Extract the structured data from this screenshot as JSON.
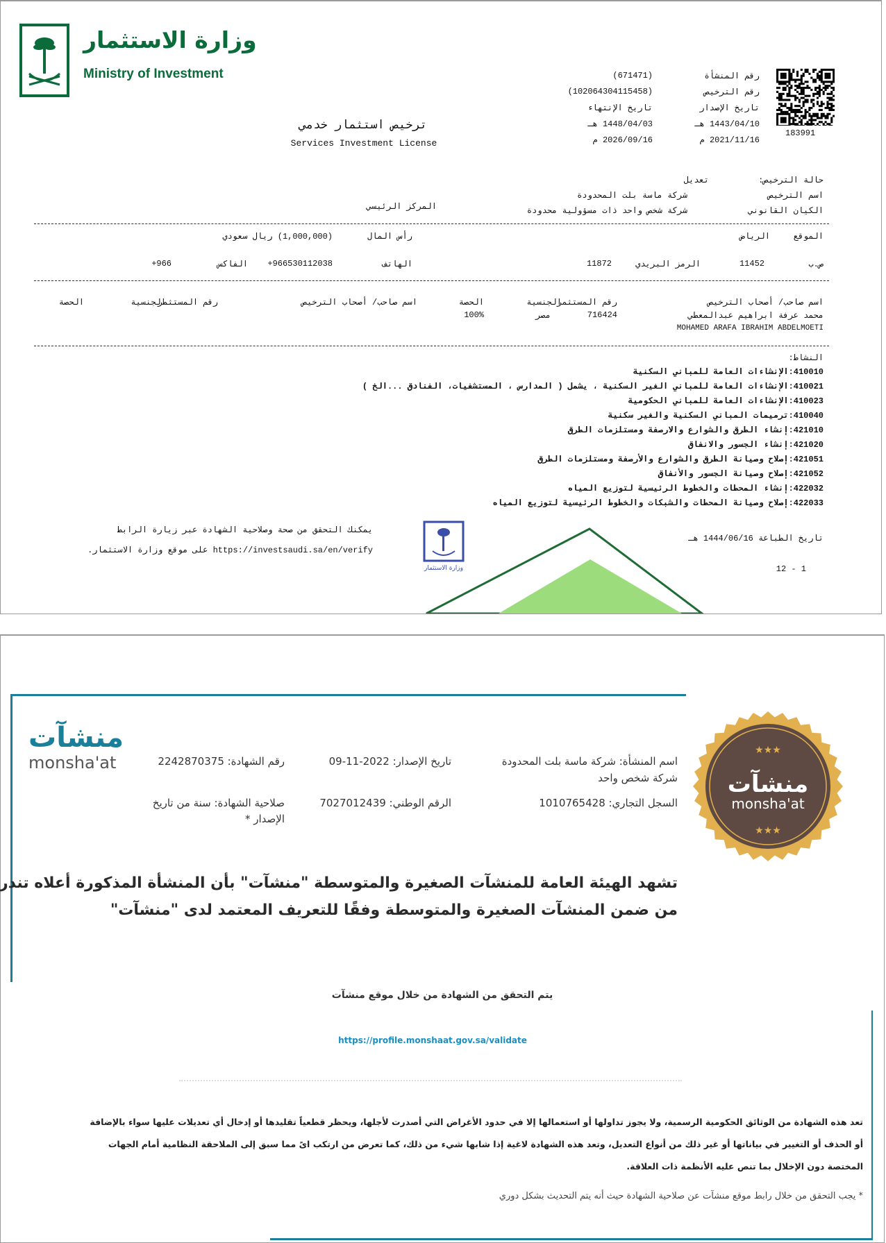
{
  "license": {
    "ministry_logo": {
      "ar": "وزارة الاستثمار",
      "en": "Ministry of Investment"
    },
    "title_ar": "ترخيص استثمار خدمي",
    "title_en": "Services Investment License",
    "branch": "المركز الرئيسي",
    "qr_number": "183991",
    "header": {
      "facility_no_label": "رقم المنشأة",
      "facility_no": "(671471)",
      "license_no_label": "رقم الترخيص",
      "license_no": "(102064304115458)",
      "issue_date_label": "تاريخ الإصدار",
      "issue_date_hijri": "1443/04/10 هـ",
      "issue_date_greg": "2021/11/16 م",
      "expiry_date_label": "تاريخ الإنتهاء",
      "expiry_date_hijri": "1448/04/03 هـ",
      "expiry_date_greg": "2026/09/16 م"
    },
    "status_label": "حالة الترخيص:",
    "status": "تعديل",
    "name_label": "اسم الترخيص",
    "name": "شركة ماسة بلت المحدودة",
    "entity_label": "الكيان القانوني",
    "entity": "شركة شخص واحد ذات مسؤولية محدودة",
    "location_label": "الموقع",
    "location": "الرياض",
    "capital_label": "رأس المال",
    "capital": "(1,000,000) ريال سعودي",
    "pobox_label": "ص.ب",
    "pobox": "11452",
    "postal_label": "الرمز البريدي",
    "postal": "11872",
    "phone_label": "الهاتف",
    "phone": "+966530112038",
    "fax_label": "الفاكس",
    "fax": "+966",
    "owners_headers": [
      "اسم صاحب/ أصحاب الترخيص",
      "رقم المستثمر",
      "الجنسية",
      "الحصة"
    ],
    "owners": [
      {
        "name_ar": "محمد عرفة ابراهيم عبدالمعطي",
        "name_en": "MOHAMED ARAFA IBRAHIM ABDELMOETI",
        "investor_no": "716424",
        "nationality": "مصر",
        "share": "100%"
      }
    ],
    "activity_label": "النشاط:",
    "activities": [
      "410010:الإنشاءات العامة للمباني السكنية",
      "410021:الإنشاءات العامة للمباني الغير السكنية ، يشمل ( المدارس ، المستشفيات، الفنادق ...الخ )",
      "410023:الإنشاءات العامة للمباني الحكومية",
      "410040:ترميمات المباني السكنية والغير سكنية",
      "421010:إنشاء الطرق والشوارع والارصفة ومستلزمات الطرق",
      "421020:إنشاء الجسور والانفاق",
      "421051:إصلاح وصيانة الطرق والشوارع والأرصفة ومستلزمات الطرق",
      "421052:إصلاح وصيانة الجسور والأنفاق",
      "422032:إنشاء المحطات والخطوط الرئيسية لتوزيع المياه",
      "422033:إصلاح وصيانة المحطات والشبكات والخطوط الرئيسية لتوزيع المياه"
    ],
    "print_date": "تاريخ الطباعة 1444/06/16 هـ",
    "page_indicator": "12 - 1",
    "verify_line1": "يمكنك التحقق من صحة وصلاحية الشهادة عبر زيارة الرابط",
    "verify_line2": "https://investsaudi.sa/en/verify على موقع وزارة الاستثمار.",
    "stamp_text": "وزارة الاستثمار"
  },
  "certificate": {
    "logo": {
      "ar": "منشآت",
      "en": "monsha'at"
    },
    "facility_name": "اسم المنشأة: شركة ماسة بلت المحدودة",
    "facility_type": "شركة شخص واحد",
    "issue_date": "تاريخ الإصدار: 2022-11-09",
    "certificate_no": "رقم الشهادة: 2242870375",
    "commercial_reg": "السجل التجاري: 1010765428",
    "national_no": "الرقم الوطني: 7027012439",
    "validity_line1": "صلاحية الشهادة: سنة من تاريخ",
    "validity_line2": "الإصدار *",
    "statement_line1": "تشهد الهيئة العامة للمنشآت الصغيرة والمتوسطة \"منشآت\" بأن المنشأة المذكورة أعلاه تندرج",
    "statement_line2": "من ضمن المنشآت الصغيرة والمتوسطة وفقًا للتعريف المعتمد لدى \"منشآت\"",
    "verify_heading": "يتم التحقق من الشهادة من خلال موقع منشآت",
    "verify_url": "https://profile.monshaat.gov.sa/validate",
    "disclaimer_line1": "تعد هذه الشهادة من الوثائق الحكومية الرسمية، ولا يجوز تداولها أو استعمالها إلا في حدود الأغراض التي أصدرت لأجلها، ويحظر قطعياً تقليدها أو إدخال أي تعديلات عليها سواء بالإضافة",
    "disclaimer_line2": "أو الحذف أو التغيير في بياناتها أو غير ذلك من أنواع التعديل، وتعد هذه الشهادة لاغية إذا شابها شيء من ذلك، كما تعرض من ارتكب اىً مما سبق إلى الملاحقة النظامية أمام الجهات",
    "disclaimer_line3": "المختصة دون الإخلال بما تنص عليه الأنظمة ذات العلاقة.",
    "footnote": "* يجب التحقق من خلال رابط موقع منشآت عن صلاحية الشهادة حيث أنه يتم التحديث بشكل دوري"
  },
  "colors": {
    "ministry_green": "#0b6b3a",
    "monshaat_teal": "#1a7f9a",
    "link_blue": "#1a8fc4",
    "seal_brown": "#5e4a42",
    "seal_gold": "#e2b04e"
  }
}
